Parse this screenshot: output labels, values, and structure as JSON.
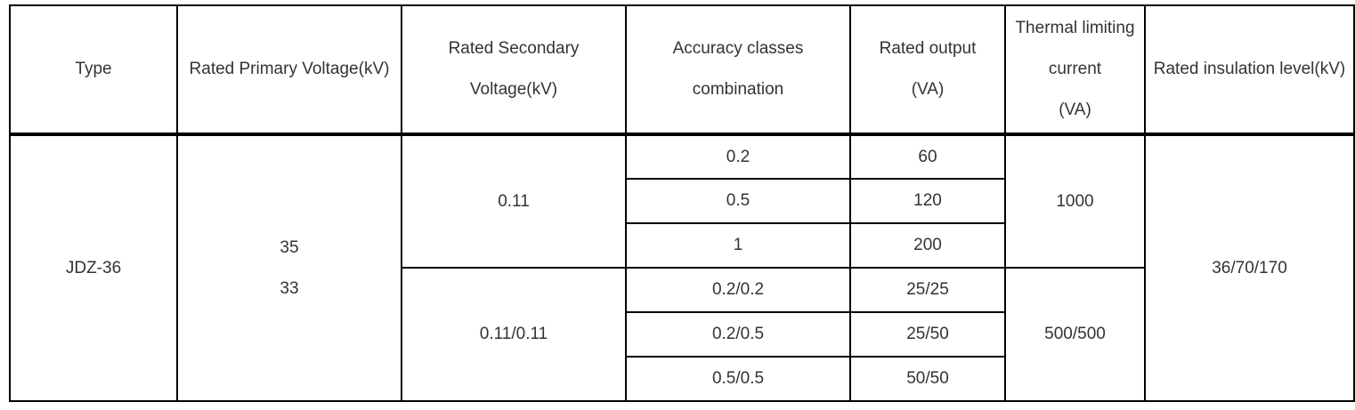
{
  "headers": {
    "type": "Type",
    "primary_voltage": "Rated Primary Voltage(kV)",
    "secondary_voltage": [
      "Rated Secondary",
      "Voltage(kV)"
    ],
    "accuracy": [
      "Accuracy classes",
      "combination"
    ],
    "output": [
      "Rated output",
      "(VA)"
    ],
    "thermal": [
      "Thermal limiting",
      "current",
      "(VA)"
    ],
    "insulation": "Rated insulation level(kV)"
  },
  "row": {
    "type": "JDZ-36",
    "primary_voltage": [
      "35",
      "33"
    ],
    "insulation": "36/70/170"
  },
  "groups": [
    {
      "secondary_voltage": "0.11",
      "thermal": "1000",
      "items": [
        {
          "accuracy": "0.2",
          "output": "60"
        },
        {
          "accuracy": "0.5",
          "output": "120"
        },
        {
          "accuracy": "1",
          "output": "200"
        }
      ]
    },
    {
      "secondary_voltage": "0.11/0.11",
      "thermal": "500/500",
      "items": [
        {
          "accuracy": "0.2/0.2",
          "output": "25/25"
        },
        {
          "accuracy": "0.2/0.5",
          "output": "25/50"
        },
        {
          "accuracy": "0.5/0.5",
          "output": "50/50"
        }
      ]
    }
  ]
}
